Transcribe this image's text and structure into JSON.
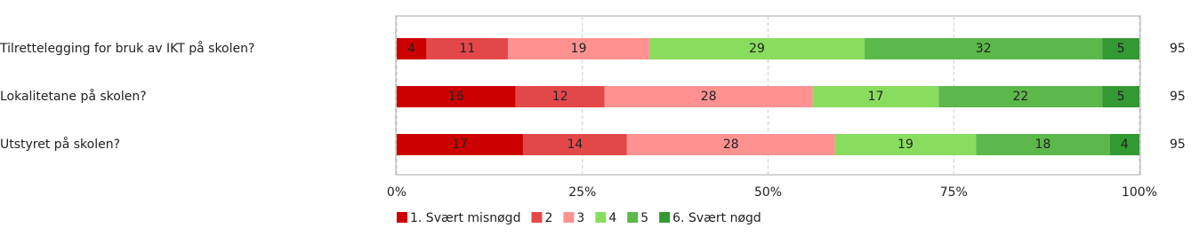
{
  "chart_data": {
    "type": "bar",
    "orientation": "horizontal",
    "stacked": true,
    "categories": [
      "Tilrettelegging for bruk av IKT på skolen?",
      "Lokalitetane på skolen?",
      "Utstyret på skolen?"
    ],
    "series": [
      {
        "name": "1. Svært misnøgd",
        "color": "#cc0000",
        "values": [
          4,
          16,
          17
        ]
      },
      {
        "name": "2",
        "color": "#e34848",
        "values": [
          11,
          12,
          14
        ]
      },
      {
        "name": "3",
        "color": "#ff9191",
        "values": [
          19,
          28,
          28
        ]
      },
      {
        "name": "4",
        "color": "#88dd5e",
        "values": [
          29,
          17,
          19
        ]
      },
      {
        "name": "5",
        "color": "#5cb84a",
        "values": [
          32,
          22,
          18
        ]
      },
      {
        "name": "6. Svært nøgd",
        "color": "#339933",
        "values": [
          5,
          5,
          4
        ]
      }
    ],
    "n": [
      95,
      95,
      95
    ],
    "xlim": [
      0,
      100
    ],
    "xticks": [
      {
        "value": 0,
        "label": "0%"
      },
      {
        "value": 25,
        "label": "25%"
      },
      {
        "value": 50,
        "label": "50%"
      },
      {
        "value": 75,
        "label": "75%"
      },
      {
        "value": 100,
        "label": "100%"
      }
    ],
    "grid": true,
    "legend": "bottom"
  }
}
